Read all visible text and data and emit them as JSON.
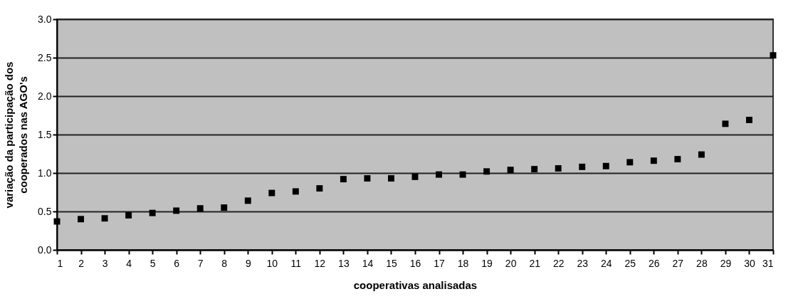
{
  "chart_data": {
    "type": "scatter",
    "xlabel": "cooperativas analisadas",
    "ylabel": "variação da participação dos cooperados nas AGO's",
    "x": [
      1,
      2,
      3,
      4,
      5,
      6,
      7,
      8,
      9,
      10,
      11,
      12,
      13,
      14,
      15,
      16,
      17,
      18,
      19,
      20,
      21,
      22,
      23,
      24,
      25,
      26,
      27,
      28,
      29,
      30,
      31
    ],
    "series": [
      {
        "color": "#000000",
        "values": [
          0.37,
          0.4,
          0.41,
          0.45,
          0.48,
          0.51,
          0.54,
          0.55,
          0.64,
          0.74,
          0.76,
          0.8,
          0.92,
          0.93,
          0.93,
          0.95,
          0.98,
          0.98,
          1.02,
          1.04,
          1.05,
          1.06,
          1.08,
          1.09,
          1.14,
          1.16,
          1.18,
          1.24,
          1.64,
          1.69,
          2.53
        ]
      }
    ],
    "xlim": [
      1,
      31
    ],
    "xticks": [
      1,
      2,
      3,
      4,
      5,
      6,
      7,
      8,
      9,
      10,
      11,
      12,
      13,
      14,
      15,
      16,
      17,
      18,
      19,
      20,
      21,
      22,
      23,
      24,
      25,
      26,
      27,
      28,
      29,
      30,
      31
    ],
    "ylim": [
      0,
      3
    ],
    "yticks": [
      {
        "value": 0,
        "label": "0.0"
      },
      {
        "value": 0.5,
        "label": "0.5"
      },
      {
        "value": 1,
        "label": "1.0"
      },
      {
        "value": 1.5,
        "label": "1.5"
      },
      {
        "value": 2,
        "label": "2.0"
      },
      {
        "value": 2.5,
        "label": "2.5"
      },
      {
        "value": 3,
        "label": "3.0"
      }
    ],
    "grid": "y",
    "marker": "square",
    "legend": false
  }
}
